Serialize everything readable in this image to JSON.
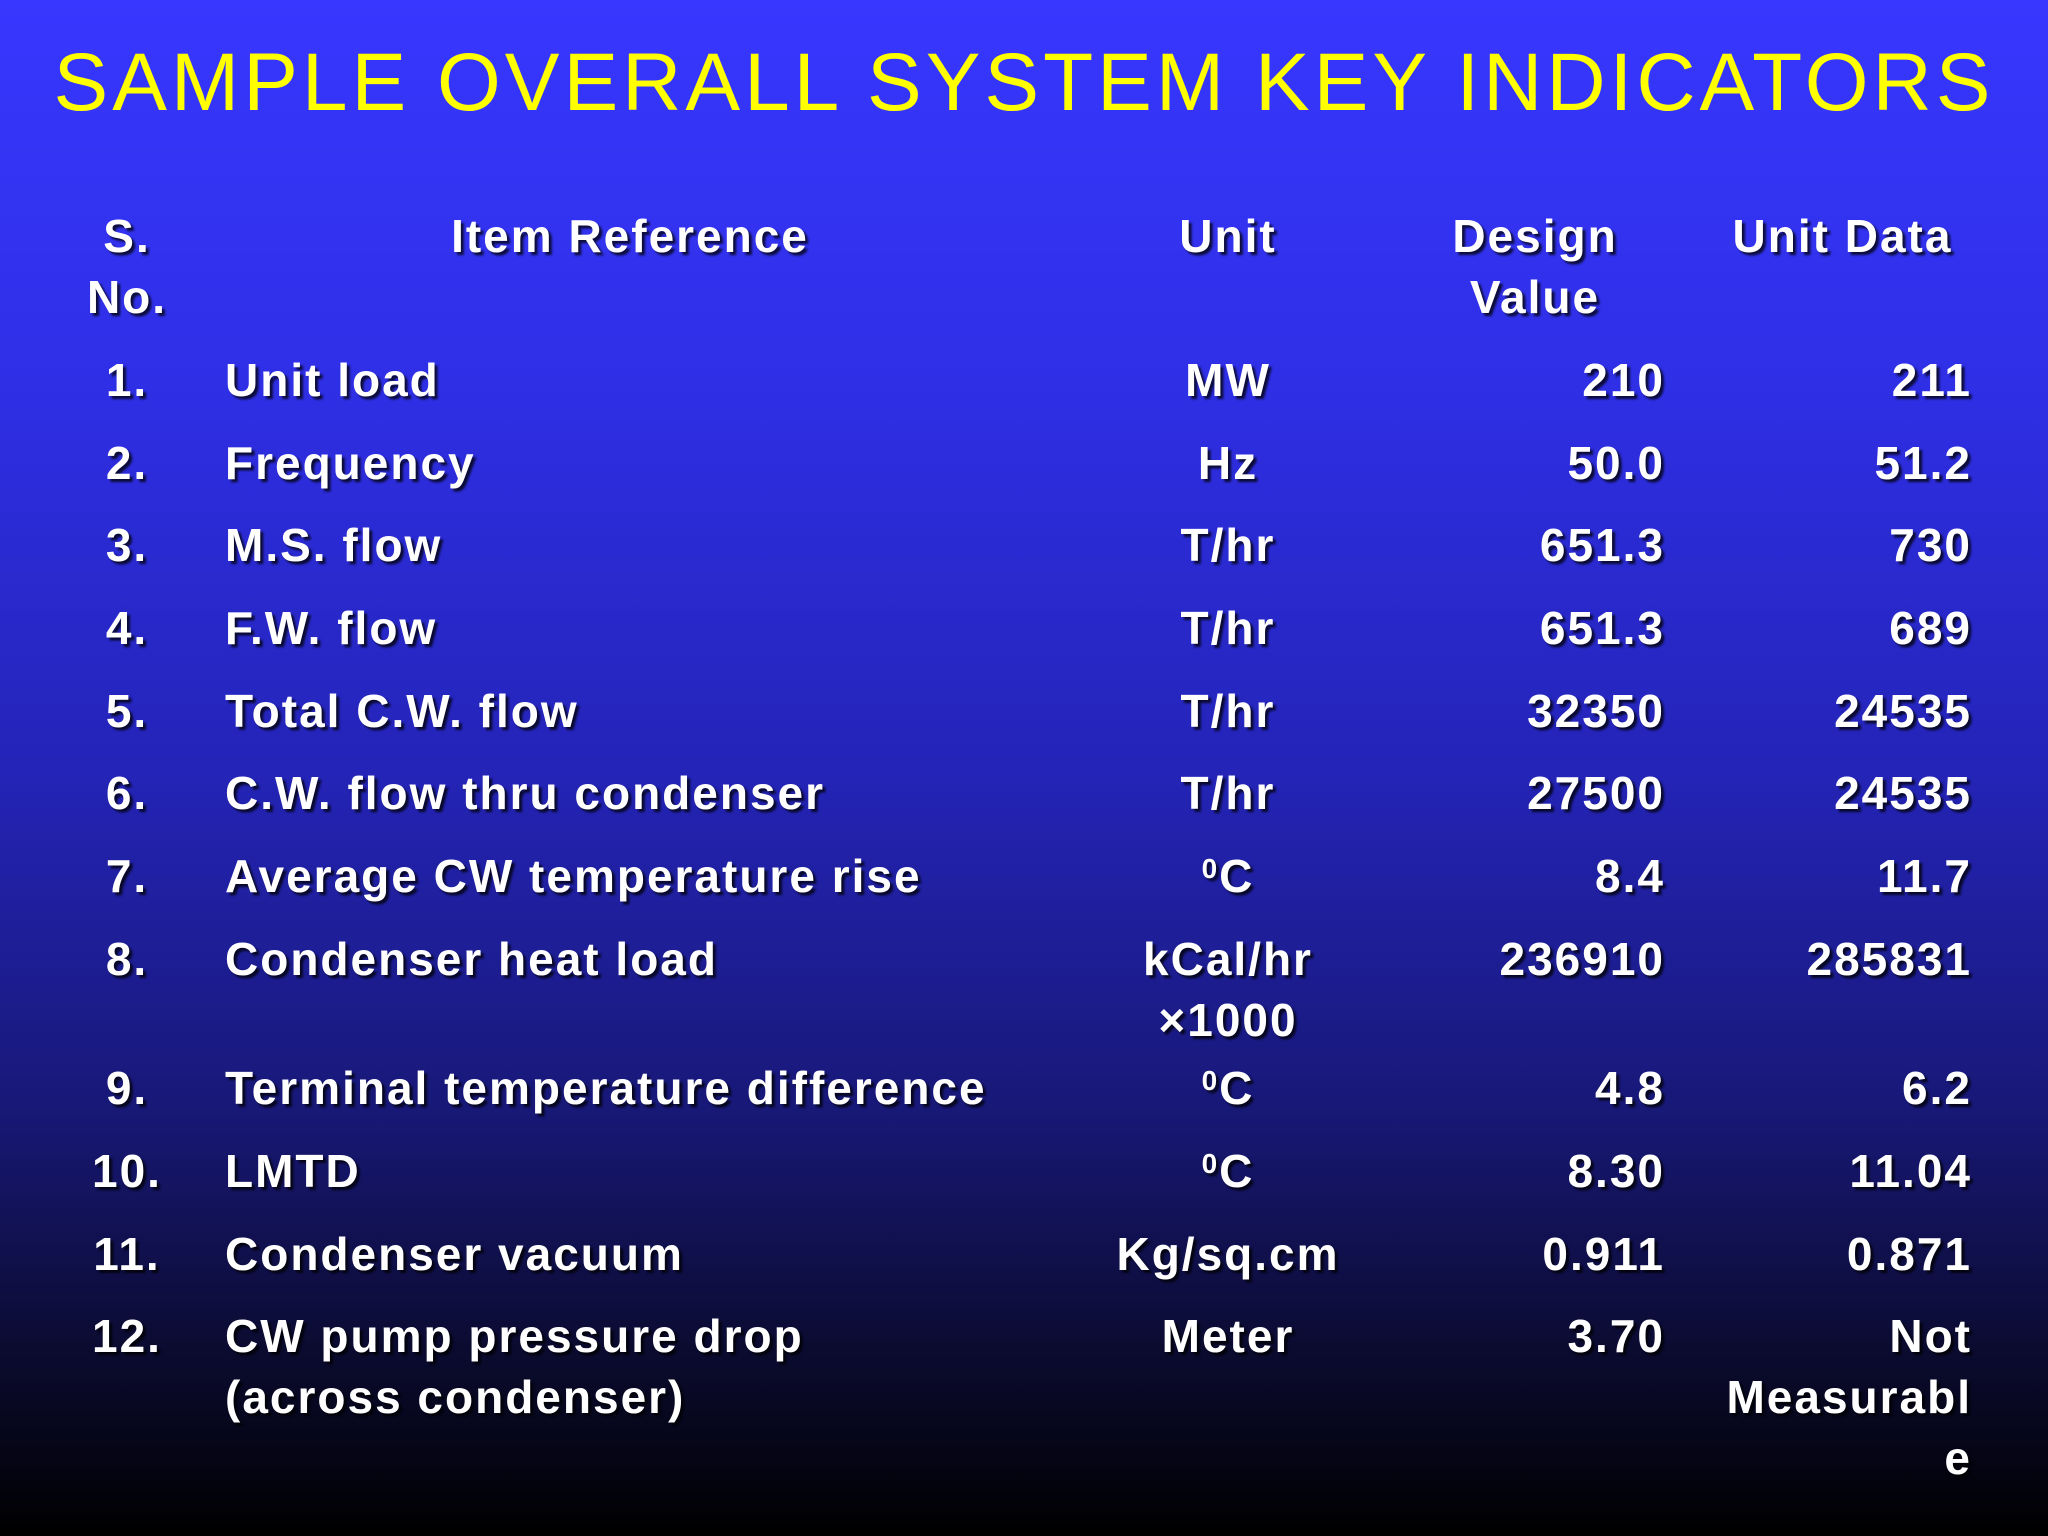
{
  "slide": {
    "title": "SAMPLE OVERALL SYSTEM KEY INDICATORS",
    "title_color": "#ffff00",
    "text_color": "#ffffff"
  },
  "table": {
    "headers": {
      "sno": "S.\nNo.",
      "item": "Item Reference",
      "unit": "Unit",
      "design": "Design\nValue",
      "data": "Unit Data"
    },
    "rows": [
      {
        "sno": "1.",
        "item": "Unit load",
        "unit": "MW",
        "design": "210",
        "data": "211"
      },
      {
        "sno": "2.",
        "item": "Frequency",
        "unit": "Hz",
        "design": "50.0",
        "data": "51.2"
      },
      {
        "sno": "3.",
        "item": "M.S. flow",
        "unit": "T/hr",
        "design": "651.3",
        "data": "730"
      },
      {
        "sno": "4.",
        "item": "F.W. flow",
        "unit": "T/hr",
        "design": "651.3",
        "data": "689"
      },
      {
        "sno": "5.",
        "item": "Total C.W. flow",
        "unit": "T/hr",
        "design": "32350",
        "data": "24535"
      },
      {
        "sno": "6.",
        "item": "C.W. flow thru condenser",
        "unit": "T/hr",
        "design": "27500",
        "data": "24535"
      },
      {
        "sno": "7.",
        "item": "Average CW temperature rise",
        "unit_sup": "0",
        "unit": "C",
        "design": "8.4",
        "data": "11.7"
      },
      {
        "sno": "8.",
        "item": "Condenser heat load",
        "unit": "kCal/hr\n×1000",
        "design": "236910",
        "data": "285831"
      },
      {
        "sno": "9.",
        "item": "Terminal temperature difference",
        "unit_sup": "0",
        "unit": "C",
        "design": "4.8",
        "data": "6.2"
      },
      {
        "sno": "10.",
        "item": "LMTD",
        "unit_sup": "0",
        "unit": "C",
        "design": "8.30",
        "data": "11.04"
      },
      {
        "sno": "11.",
        "item": "Condenser vacuum",
        "unit": "Kg/sq.cm",
        "design": "0.911",
        "data": "0.871"
      },
      {
        "sno": "12.",
        "item": "CW pump pressure drop\n(across condenser)",
        "unit": "Meter",
        "design": "3.70",
        "data": "Not\nMeasurabl\ne"
      }
    ]
  }
}
